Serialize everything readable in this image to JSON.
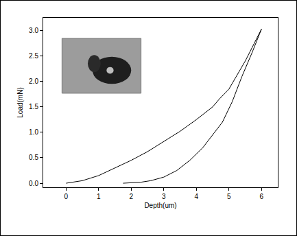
{
  "chart_data": {
    "type": "line",
    "x_label": "Depth(um)",
    "y_label": "Load(mN)",
    "color": "#000000",
    "grid": false,
    "xlim": [
      -0.7,
      6.5
    ],
    "xticks": [
      0,
      1,
      2,
      3,
      4,
      5,
      6
    ],
    "ylim": [
      -0.08,
      3.25
    ],
    "yticks": [
      {
        "value": 0,
        "label": "0.0"
      },
      0.5,
      {
        "value": 1,
        "label": "1.0"
      },
      1.5,
      {
        "value": 2,
        "label": "2.0"
      },
      2.5,
      {
        "value": 3,
        "label": "3.0"
      }
    ],
    "series": [
      {
        "x": [
          0,
          0.5,
          1,
          1.5,
          2,
          2.5,
          3,
          3.5,
          4,
          4.5,
          4.7,
          5,
          5.5,
          6
        ],
        "values": [
          0,
          0.05,
          0.15,
          0.3,
          0.45,
          0.62,
          0.82,
          1.02,
          1.25,
          1.5,
          1.65,
          1.85,
          2.4,
          3.03
        ]
      },
      {
        "x": [
          6,
          5.7,
          5.4,
          5.1,
          4.8,
          4.5,
          4.2,
          3.8,
          3.4,
          3,
          2.6,
          2.3,
          2,
          1.75
        ],
        "values": [
          3.03,
          2.55,
          2.1,
          1.6,
          1.2,
          0.95,
          0.7,
          0.45,
          0.25,
          0.12,
          0.05,
          0.02,
          0.01,
          0
        ]
      }
    ]
  }
}
